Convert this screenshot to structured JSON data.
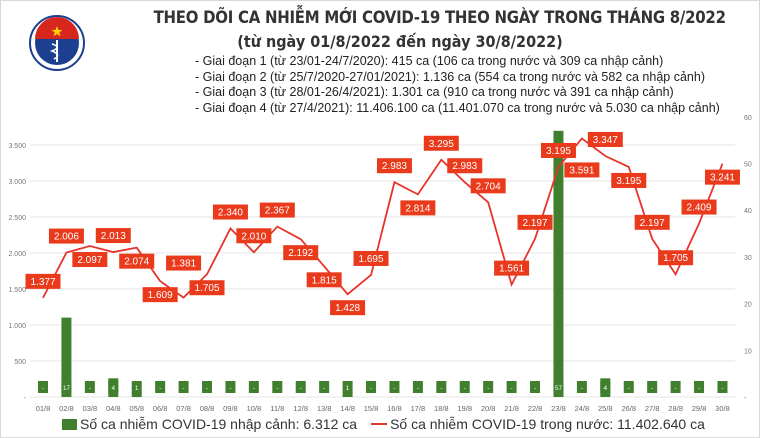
{
  "header": {
    "logo_text": "BỘ Y TẾ · MINISTRY OF HEALTH",
    "title": "THEO DÕI CA NHIỄM MỚI COVID-19 THEO NGÀY TRONG THÁNG 8/2022",
    "subtitle": "(từ ngày 01/8/2022 đến ngày 30/8/2022)",
    "phases": [
      "- Giai đoạn 1 (từ 23/01-24/7/2020): 415 ca (106 ca trong nước và 309 ca nhập cảnh)",
      "- Giai đoạn 2 (từ 25/7/2020-27/01/2021): 1.136 ca (554 ca trong nước và 582 ca nhập cảnh)",
      "- Giai đoạn 3 (từ 28/01-26/4/2021): 1.301 ca (910 ca trong nước và 391 ca nhập cảnh)",
      "- Giai đoạn 4 (từ 27/4/2021): 11.406.100 ca (11.401.070 ca trong nước và 5.030 ca nhập cảnh)"
    ]
  },
  "chart_data": {
    "type": "bar+line",
    "categories": [
      "01/8",
      "02/8",
      "03/8",
      "04/8",
      "05/8",
      "06/8",
      "07/8",
      "08/8",
      "09/8",
      "10/8",
      "11/8",
      "12/8",
      "13/8",
      "14/8",
      "15/8",
      "16/8",
      "17/8",
      "18/8",
      "19/8",
      "20/8",
      "21/8",
      "22/8",
      "23/8",
      "24/8",
      "25/8",
      "26/8",
      "27/8",
      "28/8",
      "29/8",
      "30/8"
    ],
    "series": [
      {
        "name": "Số ca nhiễm COVID-19 nhập cảnh: 6.312 ca",
        "type": "bar",
        "axis": "right",
        "color": "#3f7f2e",
        "values": [
          0,
          17,
          0,
          4,
          1,
          0,
          0,
          0,
          0,
          0,
          0,
          0,
          0,
          1,
          0,
          0,
          0,
          0,
          0,
          0,
          0,
          0,
          57,
          0,
          4,
          0,
          0,
          0,
          0,
          0
        ]
      },
      {
        "name": "Số ca nhiễm COVID-19 trong nước: 11.402.640 ca",
        "type": "line",
        "axis": "left",
        "color": "#e8332a",
        "values": [
          1377,
          2006,
          2097,
          2013,
          2074,
          1609,
          1381,
          1705,
          2340,
          2010,
          2367,
          2192,
          1815,
          1428,
          1695,
          2983,
          2814,
          3295,
          2983,
          2704,
          1561,
          2197,
          3195,
          3591,
          3347,
          3195,
          2197,
          1705,
          2409,
          3241
        ]
      }
    ],
    "left_axis": {
      "ticks": [
        "-",
        "500",
        "1.000",
        "1.500",
        "2.000",
        "2.500",
        "3.000",
        "3.500"
      ],
      "range": [
        0,
        3500
      ]
    },
    "right_axis": {
      "ticks": [
        "-",
        "10",
        "20",
        "30",
        "40",
        "50",
        "60"
      ],
      "range": [
        0,
        60
      ]
    },
    "zero_label": "-",
    "grid": true,
    "legend_placement": "bottom"
  }
}
